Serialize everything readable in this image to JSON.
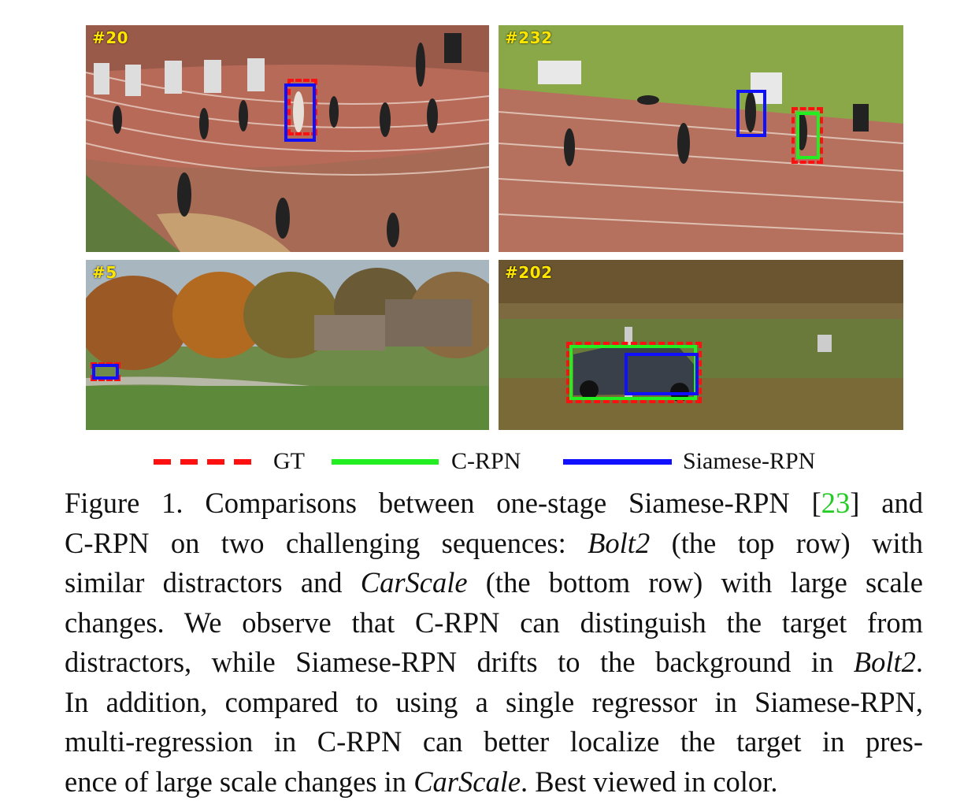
{
  "panels": [
    {
      "frame": "#20",
      "scene": "Bolt2 track sprint start"
    },
    {
      "frame": "#232",
      "scene": "Bolt2 track runners"
    },
    {
      "frame": "#5",
      "scene": "CarScale farm road"
    },
    {
      "frame": "#202",
      "scene": "CarScale car close-up"
    }
  ],
  "legend": {
    "items": [
      {
        "label": "GT",
        "color": "#ff1010",
        "style": "dashed"
      },
      {
        "label": "C-RPN",
        "color": "#22ee22",
        "style": "solid"
      },
      {
        "label": "Siamese-RPN",
        "color": "#1010ff",
        "style": "solid"
      }
    ]
  },
  "caption": {
    "l1a": "Figure 1.  Comparisons between one-stage Siamese-RPN [",
    "l1cite": "23",
    "l1b": "] and",
    "l2a": "C-RPN on two challenging sequences:  ",
    "l2em": "Bolt2",
    "l2b": " (the top row) with",
    "l3a": "similar distractors and ",
    "l3em": "CarScale",
    "l3b": " (the bottom row) with large scale",
    "l4": "changes.  We observe that C-RPN can distinguish the target from",
    "l5a": "distractors, while Siamese-RPN drifts to the background in ",
    "l5em": "Bolt2",
    "l5b": ".",
    "l6": "In addition, compared to using a single regressor in Siamese-RPN,",
    "l7": "multi-regression in C-RPN can better localize the target in pres-",
    "l8a": "ence of large scale changes in ",
    "l8em": "CarScale",
    "l8b": ". Best viewed in color."
  }
}
